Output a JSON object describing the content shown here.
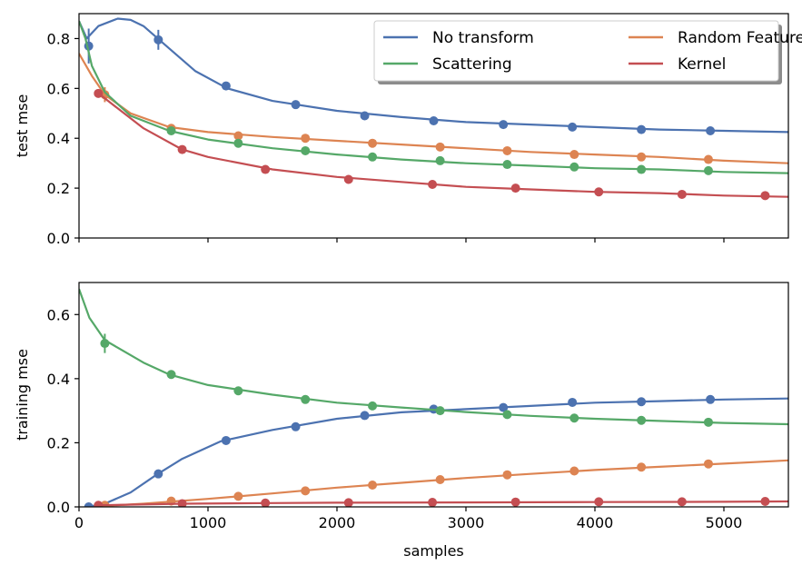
{
  "chart_data": [
    {
      "type": "line",
      "panel": "top",
      "xlabel": "",
      "ylabel": "test mse",
      "xlim": [
        0,
        5500
      ],
      "ylim": [
        0,
        0.9
      ],
      "xticks": [
        0,
        1000,
        2000,
        3000,
        4000,
        5000
      ],
      "xtick_labels_visible": false,
      "yticks": [
        0.0,
        0.2,
        0.4,
        0.6,
        0.8
      ],
      "ytick_labels": [
        "0.0",
        "0.2",
        "0.4",
        "0.6",
        "0.8"
      ],
      "legend": {
        "position": "top-right",
        "columns": 2,
        "entries": [
          "No transform",
          "Random Features",
          "Scattering",
          "Kernel"
        ]
      },
      "series": [
        {
          "name": "No transform",
          "color": "#4c72b0",
          "curve": [
            [
              0,
              0.87
            ],
            [
              60,
              0.8
            ],
            [
              150,
              0.85
            ],
            [
              300,
              0.88
            ],
            [
              400,
              0.875
            ],
            [
              500,
              0.85
            ],
            [
              700,
              0.76
            ],
            [
              900,
              0.67
            ],
            [
              1150,
              0.6
            ],
            [
              1500,
              0.55
            ],
            [
              2000,
              0.51
            ],
            [
              2500,
              0.485
            ],
            [
              3000,
              0.465
            ],
            [
              3500,
              0.455
            ],
            [
              4000,
              0.445
            ],
            [
              4500,
              0.435
            ],
            [
              5000,
              0.43
            ],
            [
              5500,
              0.425
            ]
          ],
          "points": [
            [
              75,
              0.77
            ],
            [
              615,
              0.795
            ],
            [
              1140,
              0.61
            ],
            [
              1680,
              0.535
            ],
            [
              2215,
              0.49
            ],
            [
              2750,
              0.47
            ],
            [
              3290,
              0.455
            ],
            [
              3825,
              0.445
            ],
            [
              4360,
              0.435
            ],
            [
              4895,
              0.43
            ]
          ],
          "error_bars": [
            [
              75,
              0.07
            ],
            [
              615,
              0.04
            ]
          ]
        },
        {
          "name": "Random Features",
          "color": "#dd8452",
          "curve": [
            [
              0,
              0.74
            ],
            [
              100,
              0.65
            ],
            [
              200,
              0.575
            ],
            [
              400,
              0.5
            ],
            [
              700,
              0.445
            ],
            [
              1000,
              0.425
            ],
            [
              1500,
              0.405
            ],
            [
              2000,
              0.39
            ],
            [
              2500,
              0.375
            ],
            [
              3000,
              0.36
            ],
            [
              3500,
              0.345
            ],
            [
              4000,
              0.335
            ],
            [
              4500,
              0.325
            ],
            [
              5000,
              0.31
            ],
            [
              5500,
              0.3
            ]
          ],
          "points": [
            [
              200,
              0.575
            ],
            [
              715,
              0.44
            ],
            [
              1235,
              0.41
            ],
            [
              1755,
              0.4
            ],
            [
              2275,
              0.38
            ],
            [
              2800,
              0.365
            ],
            [
              3320,
              0.35
            ],
            [
              3840,
              0.335
            ],
            [
              4360,
              0.325
            ],
            [
              4880,
              0.315
            ]
          ],
          "error_bars": [
            [
              200,
              0.03
            ]
          ]
        },
        {
          "name": "Scattering",
          "color": "#55a868",
          "curve": [
            [
              0,
              0.87
            ],
            [
              50,
              0.8
            ],
            [
              100,
              0.69
            ],
            [
              200,
              0.585
            ],
            [
              400,
              0.49
            ],
            [
              700,
              0.43
            ],
            [
              1000,
              0.395
            ],
            [
              1500,
              0.36
            ],
            [
              2000,
              0.335
            ],
            [
              2500,
              0.315
            ],
            [
              3000,
              0.3
            ],
            [
              3500,
              0.29
            ],
            [
              4000,
              0.28
            ],
            [
              4500,
              0.275
            ],
            [
              5000,
              0.265
            ],
            [
              5500,
              0.26
            ]
          ],
          "points": [
            [
              715,
              0.43
            ],
            [
              1235,
              0.38
            ],
            [
              1755,
              0.35
            ],
            [
              2275,
              0.325
            ],
            [
              2800,
              0.31
            ],
            [
              3320,
              0.295
            ],
            [
              3840,
              0.285
            ],
            [
              4360,
              0.275
            ],
            [
              4880,
              0.27
            ]
          ],
          "error_bars": []
        },
        {
          "name": "Kernel",
          "color": "#c44e52",
          "curve": [
            [
              150,
              0.58
            ],
            [
              300,
              0.52
            ],
            [
              500,
              0.44
            ],
            [
              800,
              0.355
            ],
            [
              1000,
              0.325
            ],
            [
              1500,
              0.275
            ],
            [
              2000,
              0.245
            ],
            [
              2500,
              0.225
            ],
            [
              3000,
              0.205
            ],
            [
              3500,
              0.195
            ],
            [
              4000,
              0.185
            ],
            [
              4500,
              0.18
            ],
            [
              5000,
              0.17
            ],
            [
              5500,
              0.165
            ]
          ],
          "points": [
            [
              150,
              0.58
            ],
            [
              800,
              0.355
            ],
            [
              1445,
              0.275
            ],
            [
              2090,
              0.235
            ],
            [
              2740,
              0.215
            ],
            [
              3385,
              0.2
            ],
            [
              4030,
              0.185
            ],
            [
              4675,
              0.175
            ],
            [
              5320,
              0.17
            ]
          ],
          "error_bars": []
        }
      ]
    },
    {
      "type": "line",
      "panel": "bottom",
      "xlabel": "samples",
      "ylabel": "training mse",
      "xlim": [
        0,
        5500
      ],
      "ylim": [
        0,
        0.7
      ],
      "xticks": [
        0,
        1000,
        2000,
        3000,
        4000,
        5000
      ],
      "xtick_labels": [
        "0",
        "1000",
        "2000",
        "3000",
        "4000",
        "5000"
      ],
      "yticks": [
        0.0,
        0.2,
        0.4,
        0.6
      ],
      "ytick_labels": [
        "0.0",
        "0.2",
        "0.4",
        "0.6"
      ],
      "series": [
        {
          "name": "No transform",
          "color": "#4c72b0",
          "curve": [
            [
              70,
              0.0
            ],
            [
              200,
              0.01
            ],
            [
              400,
              0.045
            ],
            [
              600,
              0.1
            ],
            [
              800,
              0.15
            ],
            [
              1100,
              0.205
            ],
            [
              1500,
              0.24
            ],
            [
              2000,
              0.275
            ],
            [
              2500,
              0.295
            ],
            [
              3000,
              0.305
            ],
            [
              3500,
              0.315
            ],
            [
              4000,
              0.325
            ],
            [
              4500,
              0.33
            ],
            [
              5000,
              0.335
            ],
            [
              5500,
              0.338
            ]
          ],
          "points": [
            [
              75,
              0.0
            ],
            [
              615,
              0.103
            ],
            [
              1140,
              0.207
            ],
            [
              1680,
              0.25
            ],
            [
              2215,
              0.285
            ],
            [
              2750,
              0.305
            ],
            [
              3290,
              0.31
            ],
            [
              3825,
              0.326
            ],
            [
              4360,
              0.328
            ],
            [
              4895,
              0.335
            ]
          ],
          "error_bars": []
        },
        {
          "name": "Random Features",
          "color": "#dd8452",
          "curve": [
            [
              150,
              0.002
            ],
            [
              500,
              0.01
            ],
            [
              1000,
              0.025
            ],
            [
              1500,
              0.042
            ],
            [
              2000,
              0.06
            ],
            [
              2500,
              0.075
            ],
            [
              3000,
              0.09
            ],
            [
              3500,
              0.103
            ],
            [
              4000,
              0.115
            ],
            [
              4500,
              0.125
            ],
            [
              5000,
              0.135
            ],
            [
              5500,
              0.145
            ]
          ],
          "points": [
            [
              200,
              0.005
            ],
            [
              715,
              0.018
            ],
            [
              1235,
              0.033
            ],
            [
              1755,
              0.05
            ],
            [
              2275,
              0.068
            ],
            [
              2800,
              0.085
            ],
            [
              3320,
              0.1
            ],
            [
              3840,
              0.112
            ],
            [
              4360,
              0.124
            ],
            [
              4880,
              0.134
            ]
          ],
          "error_bars": []
        },
        {
          "name": "Scattering",
          "color": "#55a868",
          "curve": [
            [
              0,
              0.68
            ],
            [
              80,
              0.59
            ],
            [
              200,
              0.52
            ],
            [
              500,
              0.45
            ],
            [
              700,
              0.413
            ],
            [
              1000,
              0.38
            ],
            [
              1500,
              0.35
            ],
            [
              2000,
              0.325
            ],
            [
              2500,
              0.31
            ],
            [
              3000,
              0.296
            ],
            [
              3500,
              0.284
            ],
            [
              4000,
              0.275
            ],
            [
              4500,
              0.268
            ],
            [
              5000,
              0.262
            ],
            [
              5500,
              0.258
            ]
          ],
          "points": [
            [
              200,
              0.51
            ],
            [
              715,
              0.413
            ],
            [
              1235,
              0.362
            ],
            [
              1755,
              0.335
            ],
            [
              2275,
              0.315
            ],
            [
              2800,
              0.3
            ],
            [
              3320,
              0.288
            ],
            [
              3840,
              0.277
            ],
            [
              4360,
              0.27
            ],
            [
              4880,
              0.264
            ]
          ],
          "error_bars": [
            [
              200,
              0.03
            ]
          ]
        },
        {
          "name": "Kernel",
          "color": "#c44e52",
          "curve": [
            [
              150,
              0.005
            ],
            [
              800,
              0.01
            ],
            [
              1500,
              0.012
            ],
            [
              2000,
              0.013
            ],
            [
              3000,
              0.014
            ],
            [
              4000,
              0.015
            ],
            [
              5000,
              0.016
            ],
            [
              5500,
              0.017
            ]
          ],
          "points": [
            [
              150,
              0.005
            ],
            [
              800,
              0.01
            ],
            [
              1445,
              0.012
            ],
            [
              2090,
              0.013
            ],
            [
              2740,
              0.014
            ],
            [
              3385,
              0.015
            ],
            [
              4030,
              0.016
            ],
            [
              4675,
              0.016
            ],
            [
              5320,
              0.017
            ]
          ],
          "error_bars": []
        }
      ]
    }
  ]
}
